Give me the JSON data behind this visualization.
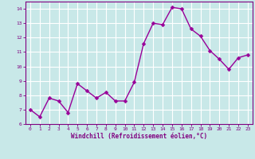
{
  "x": [
    0,
    1,
    2,
    3,
    4,
    5,
    6,
    7,
    8,
    9,
    10,
    11,
    12,
    13,
    14,
    15,
    16,
    17,
    18,
    19,
    20,
    21,
    22,
    23
  ],
  "y": [
    7.0,
    6.5,
    7.8,
    7.6,
    6.8,
    8.8,
    8.3,
    7.8,
    8.2,
    7.6,
    7.6,
    8.9,
    11.6,
    13.0,
    12.9,
    14.1,
    14.0,
    12.6,
    12.1,
    11.1,
    10.5,
    9.8,
    10.6,
    10.8
  ],
  "line_color": "#990099",
  "marker_color": "#990099",
  "bg_color": "#c8e8e8",
  "grid_color": "#ffffff",
  "xlabel": "Windchill (Refroidissement éolien,°C)",
  "xlabel_color": "#800080",
  "ylim": [
    6,
    14.5
  ],
  "xlim": [
    -0.5,
    23.5
  ],
  "yticks": [
    6,
    7,
    8,
    9,
    10,
    11,
    12,
    13,
    14
  ],
  "xticks": [
    0,
    1,
    2,
    3,
    4,
    5,
    6,
    7,
    8,
    9,
    10,
    11,
    12,
    13,
    14,
    15,
    16,
    17,
    18,
    19,
    20,
    21,
    22,
    23
  ],
  "tick_color": "#800080",
  "spine_color": "#800080",
  "marker_size": 2.5,
  "line_width": 1.0
}
